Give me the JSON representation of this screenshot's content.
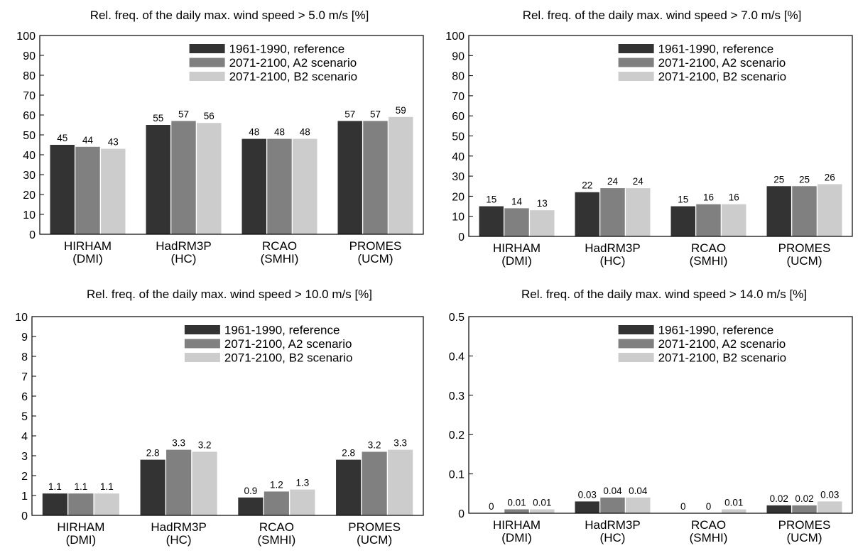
{
  "series_colors": [
    "#333333",
    "#808080",
    "#cccccc"
  ],
  "chart_data": [
    {
      "type": "bar",
      "title": "Rel. freq. of the daily max. wind speed > 5.0 m/s [%]",
      "categories": [
        [
          "HIRHAM",
          "(DMI)"
        ],
        [
          "HadRM3P",
          "(HC)"
        ],
        [
          "RCAO",
          "(SMHI)"
        ],
        [
          "PROMES",
          "(UCM)"
        ]
      ],
      "ylim": [
        0,
        100
      ],
      "yticks": [
        0,
        10,
        20,
        30,
        40,
        50,
        60,
        70,
        80,
        90,
        100
      ],
      "ytick_labels": [
        "0",
        "10",
        "20",
        "30",
        "40",
        "50",
        "60",
        "70",
        "80",
        "90",
        "100"
      ],
      "legend_position": "top-right",
      "grid": false,
      "series": [
        {
          "name": "1961-1990, reference",
          "values": [
            45,
            55,
            48,
            57
          ],
          "labels": [
            "45",
            "55",
            "48",
            "57"
          ]
        },
        {
          "name": "2071-2100, A2 scenario",
          "values": [
            44,
            57,
            48,
            57
          ],
          "labels": [
            "44",
            "57",
            "48",
            "57"
          ]
        },
        {
          "name": "2071-2100, B2 scenario",
          "values": [
            43,
            56,
            48,
            59
          ],
          "labels": [
            "43",
            "56",
            "48",
            "59"
          ]
        }
      ]
    },
    {
      "type": "bar",
      "title": "Rel. freq. of the daily max. wind speed > 7.0 m/s [%]",
      "categories": [
        [
          "HIRHAM",
          "(DMI)"
        ],
        [
          "HadRM3P",
          "(HC)"
        ],
        [
          "RCAO",
          "(SMHI)"
        ],
        [
          "PROMES",
          "(UCM)"
        ]
      ],
      "ylim": [
        0,
        100
      ],
      "yticks": [
        0,
        10,
        20,
        30,
        40,
        50,
        60,
        70,
        80,
        90,
        100
      ],
      "ytick_labels": [
        "0",
        "10",
        "20",
        "30",
        "40",
        "50",
        "60",
        "70",
        "80",
        "90",
        "100"
      ],
      "legend_position": "top-right",
      "grid": false,
      "series": [
        {
          "name": "1961-1990, reference",
          "values": [
            15,
            22,
            15,
            25
          ],
          "labels": [
            "15",
            "22",
            "15",
            "25"
          ]
        },
        {
          "name": "2071-2100, A2 scenario",
          "values": [
            14,
            24,
            16,
            25
          ],
          "labels": [
            "14",
            "24",
            "16",
            "25"
          ]
        },
        {
          "name": "2071-2100, B2 scenario",
          "values": [
            13,
            24,
            16,
            26
          ],
          "labels": [
            "13",
            "24",
            "16",
            "26"
          ]
        }
      ]
    },
    {
      "type": "bar",
      "title": "Rel. freq. of the daily max. wind speed > 10.0 m/s [%]",
      "categories": [
        [
          "HIRHAM",
          "(DMI)"
        ],
        [
          "HadRM3P",
          "(HC)"
        ],
        [
          "RCAO",
          "(SMHI)"
        ],
        [
          "PROMES",
          "(UCM)"
        ]
      ],
      "ylim": [
        0,
        10
      ],
      "yticks": [
        0,
        1,
        2,
        3,
        4,
        5,
        6,
        7,
        8,
        9,
        10
      ],
      "ytick_labels": [
        "0",
        "1",
        "2",
        "3",
        "4",
        "5",
        "6",
        "7",
        "8",
        "9",
        "10"
      ],
      "legend_position": "top-right",
      "grid": false,
      "series": [
        {
          "name": "1961-1990, reference",
          "values": [
            1.1,
            2.8,
            0.9,
            2.8
          ],
          "labels": [
            "1.1",
            "2.8",
            "0.9",
            "2.8"
          ]
        },
        {
          "name": "2071-2100, A2 scenario",
          "values": [
            1.1,
            3.3,
            1.2,
            3.2
          ],
          "labels": [
            "1.1",
            "3.3",
            "1.2",
            "3.2"
          ]
        },
        {
          "name": "2071-2100, B2 scenario",
          "values": [
            1.1,
            3.2,
            1.3,
            3.3
          ],
          "labels": [
            "1.1",
            "3.2",
            "1.3",
            "3.3"
          ]
        }
      ]
    },
    {
      "type": "bar",
      "title": "Rel. freq. of the daily max. wind speed > 14.0 m/s [%]",
      "categories": [
        [
          "HIRHAM",
          "(DMI)"
        ],
        [
          "HadRM3P",
          "(HC)"
        ],
        [
          "RCAO",
          "(SMHI)"
        ],
        [
          "PROMES",
          "(UCM)"
        ]
      ],
      "ylim": [
        0,
        0.5
      ],
      "yticks": [
        0,
        0.1,
        0.2,
        0.3,
        0.4,
        0.5
      ],
      "ytick_labels": [
        "0",
        "0.1",
        "0.2",
        "0.3",
        "0.4",
        "0.5"
      ],
      "legend_position": "top-right",
      "grid": false,
      "series": [
        {
          "name": "1961-1990, reference",
          "values": [
            0,
            0.03,
            0,
            0.02
          ],
          "labels": [
            "0",
            "0.03",
            "0",
            "0.02"
          ]
        },
        {
          "name": "2071-2100, A2 scenario",
          "values": [
            0.01,
            0.04,
            0,
            0.02
          ],
          "labels": [
            "0.01",
            "0.04",
            "0",
            "0.02"
          ]
        },
        {
          "name": "2071-2100, B2 scenario",
          "values": [
            0.01,
            0.04,
            0.01,
            0.03
          ],
          "labels": [
            "0.01",
            "0.04",
            "0.01",
            "0.03"
          ]
        }
      ]
    }
  ]
}
